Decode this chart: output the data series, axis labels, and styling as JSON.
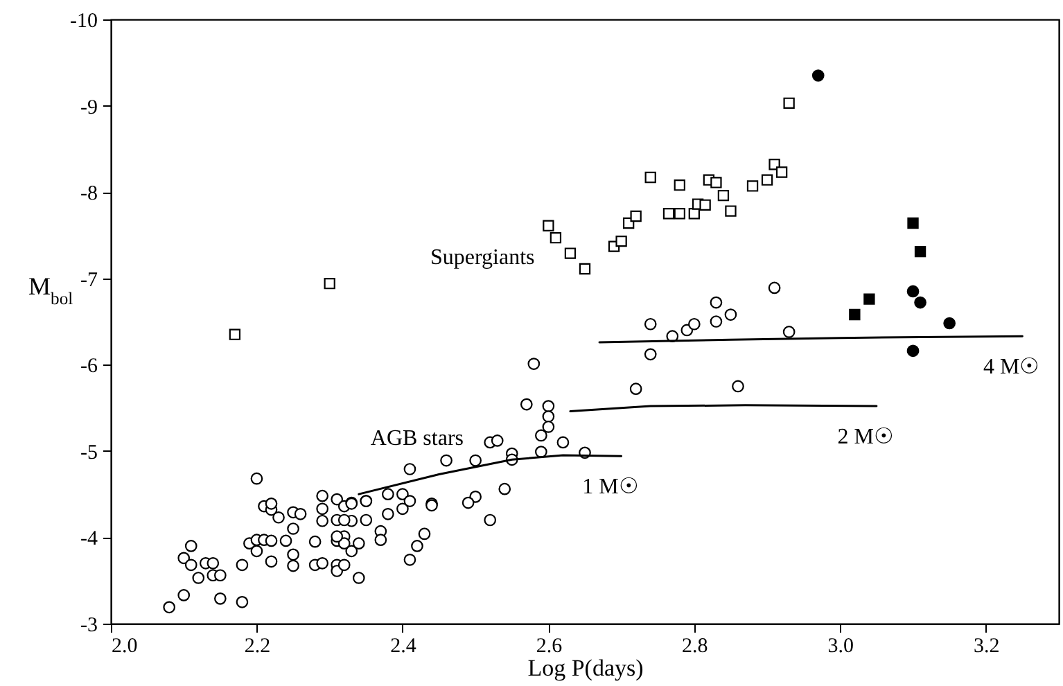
{
  "chart_data": {
    "type": "scatter",
    "xlabel": "Log P(days)",
    "ylabel": "M$_{bol}$",
    "xlim": [
      2.0,
      3.3
    ],
    "ylim": [
      -3,
      -10
    ],
    "xticks": [
      {
        "value": 2.0,
        "label": "2.0"
      },
      {
        "value": 2.2,
        "label": "2.2"
      },
      {
        "value": 2.4,
        "label": "2.4"
      },
      {
        "value": 2.6,
        "label": "2.6"
      },
      {
        "value": 2.8,
        "label": "2.8"
      },
      {
        "value": 3.0,
        "label": "3.0"
      },
      {
        "value": 3.2,
        "label": "3.2"
      }
    ],
    "yticks": [
      -3,
      -4,
      -5,
      -6,
      -7,
      -8,
      -9,
      -10
    ],
    "grid": false,
    "series": [
      {
        "type": "scatter",
        "marker": "circle",
        "color": "#ffffff",
        "x": [
          2.08,
          2.1,
          2.11,
          2.1,
          2.11,
          2.12,
          2.13,
          2.14,
          2.14,
          2.15,
          2.15,
          2.18,
          2.18,
          2.2,
          2.19,
          2.2,
          2.2,
          2.21,
          2.21,
          2.22,
          2.22,
          2.23,
          2.22,
          2.22,
          2.24,
          2.25,
          2.25,
          2.25,
          2.26,
          2.25,
          2.28,
          2.28,
          2.29,
          2.29,
          2.29,
          2.31,
          2.31,
          2.31,
          2.32,
          2.33,
          2.32,
          2.32,
          2.33,
          2.31,
          2.32,
          2.33,
          2.34,
          2.33,
          2.31,
          2.32,
          2.35,
          2.35,
          2.31,
          2.34,
          2.29,
          2.58,
          2.57,
          2.6,
          2.6,
          2.6,
          2.59,
          2.62,
          2.59,
          2.55,
          2.55,
          2.65,
          2.52,
          2.53,
          2.5,
          2.46,
          2.41,
          2.54,
          2.5,
          2.49,
          2.52,
          2.44,
          2.44,
          2.43,
          2.42,
          2.41,
          2.38,
          2.4,
          2.4,
          2.37,
          2.37,
          2.35,
          2.38,
          2.41,
          2.72,
          2.74,
          2.86,
          2.74,
          2.77,
          2.79,
          2.8,
          2.83,
          2.83,
          2.85,
          2.91,
          2.93
        ],
        "values": [
          -3.19,
          -3.33,
          -3.9,
          -3.76,
          -3.68,
          -3.53,
          -3.7,
          -3.56,
          -3.7,
          -3.56,
          -3.29,
          -3.25,
          -3.68,
          -4.68,
          -3.93,
          -3.97,
          -3.84,
          -3.97,
          -4.36,
          -4.32,
          -4.39,
          -4.23,
          -3.96,
          -3.72,
          -3.96,
          -4.1,
          -3.8,
          -4.29,
          -4.27,
          -3.67,
          -3.95,
          -3.68,
          -4.48,
          -4.33,
          -4.19,
          -4.44,
          -3.96,
          -3.68,
          -4.36,
          -4.4,
          -4.01,
          -3.93,
          -3.84,
          -3.61,
          -3.68,
          -4.19,
          -3.53,
          -4.39,
          -4.2,
          -4.2,
          -4.2,
          -4.42,
          -4.01,
          -3.93,
          -3.7,
          -6.01,
          -5.54,
          -5.52,
          -5.4,
          -5.28,
          -5.18,
          -5.1,
          -4.99,
          -4.97,
          -4.9,
          -4.98,
          -5.1,
          -5.12,
          -4.89,
          -4.89,
          -4.79,
          -4.56,
          -4.47,
          -4.4,
          -4.2,
          -4.39,
          -4.37,
          -4.04,
          -3.9,
          -3.74,
          -4.5,
          -4.5,
          -4.33,
          -4.07,
          -3.97,
          -4.42,
          -4.27,
          -4.42,
          -5.72,
          -6.12,
          -5.75,
          -6.47,
          -6.33,
          -6.4,
          -6.47,
          -6.72,
          -6.5,
          -6.58,
          -6.89,
          -6.38
        ]
      },
      {
        "type": "scatter",
        "marker": "square",
        "color": "#ffffff",
        "x": [
          2.17,
          2.3,
          2.6,
          2.61,
          2.63,
          2.65,
          2.69,
          2.7,
          2.71,
          2.72,
          2.74,
          2.78,
          2.765,
          2.78,
          2.8,
          2.805,
          2.815,
          2.82,
          2.83,
          2.84,
          2.85,
          2.88,
          2.9,
          2.91,
          2.92,
          2.93
        ],
        "values": [
          -6.35,
          -6.94,
          -7.61,
          -7.47,
          -7.29,
          -7.11,
          -7.37,
          -7.43,
          -7.64,
          -7.72,
          -8.17,
          -8.08,
          -7.75,
          -7.75,
          -7.75,
          -7.86,
          -7.85,
          -8.14,
          -8.11,
          -7.96,
          -7.78,
          -8.07,
          -8.14,
          -8.32,
          -8.23,
          -9.03
        ]
      },
      {
        "type": "scatter",
        "marker": "circle",
        "color": "#000000",
        "x": [
          2.97,
          3.1,
          3.11,
          3.15,
          3.1
        ],
        "values": [
          -9.35,
          -6.85,
          -6.72,
          -6.48,
          -6.16
        ]
      },
      {
        "type": "scatter",
        "marker": "square",
        "color": "#000000",
        "x": [
          3.1,
          3.11,
          3.02,
          3.04
        ],
        "values": [
          -7.64,
          -7.31,
          -6.58,
          -6.76
        ]
      },
      {
        "type": "line",
        "name": "1 M☉",
        "marker": "none",
        "color": "#000000",
        "x": [
          2.34,
          2.45,
          2.55,
          2.62,
          2.7
        ],
        "values": [
          -4.5,
          -4.73,
          -4.9,
          -4.95,
          -4.94
        ]
      },
      {
        "type": "line",
        "name": "2 M☉",
        "marker": "none",
        "color": "#000000",
        "x": [
          2.63,
          2.74,
          2.87,
          3.05
        ],
        "values": [
          -5.46,
          -5.52,
          -5.53,
          -5.52
        ]
      },
      {
        "type": "line",
        "name": "4 M☉",
        "marker": "none",
        "color": "#000000",
        "x": [
          2.67,
          2.85,
          3.0,
          3.25
        ],
        "values": [
          -6.26,
          -6.29,
          -6.31,
          -6.33
        ]
      }
    ],
    "annotations": [
      "Supergiants",
      "AGB stars"
    ]
  }
}
